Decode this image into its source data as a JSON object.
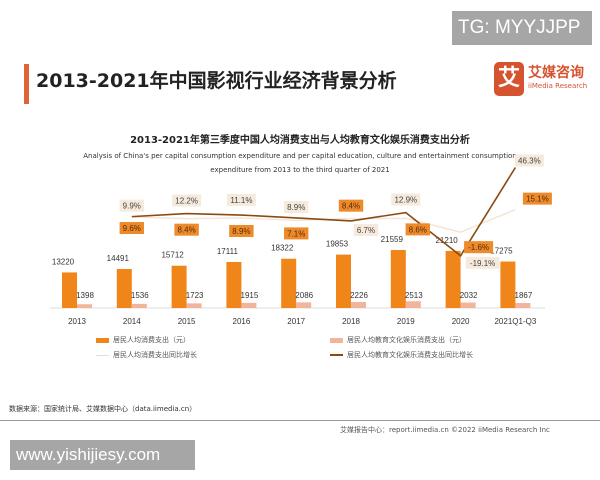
{
  "overlay_tag": "TG: MYYJJPP",
  "watermark": "www.yishijiesy.com",
  "header": {
    "title": "2013-2021年中国影视行业经济背景分析",
    "logo_mark": "艾",
    "logo_cn": "艾媒咨询",
    "logo_en": "iiMedia Research"
  },
  "source": "数据来源：国家统计局、艾媒数据中心（data.iimedia.cn）",
  "footer": "艾媒报告中心：report.iimedia.cn    ©2022  iiMedia Research Inc",
  "colors": {
    "bar_consumption": "#f08519",
    "bar_education": "#f2b49a",
    "line_consumption": "#f3e6d8",
    "line_education": "#8a4b12",
    "accent": "#e0643a"
  },
  "chart_data": {
    "type": "bar",
    "title": "2013-2021年第三季度中国人均消费支出与人均教育文化娱乐消费支出分析",
    "subtitle_line1": "Analysis of China's per capital consumption expenditure and per capital education, culture and entertainment consumption",
    "subtitle_line2": "expenditure from 2013 to the third quarter of 2021",
    "categories": [
      "2013",
      "2014",
      "2015",
      "2016",
      "2017",
      "2018",
      "2019",
      "2020",
      "2021Q1-Q3"
    ],
    "series": [
      {
        "name": "居民人均消费支出（元）",
        "kind": "bar",
        "values": [
          13220,
          14491,
          15712,
          17111,
          18322,
          19853,
          21559,
          21210,
          17275
        ]
      },
      {
        "name": "居民人均教育文化娱乐消费支出（元）",
        "kind": "bar",
        "values": [
          1398,
          1536,
          1723,
          1915,
          2086,
          2226,
          2513,
          2032,
          1867
        ]
      },
      {
        "name": "居民人均消费支出同比增长",
        "kind": "line",
        "unit": "%",
        "values": [
          null,
          9.6,
          8.4,
          8.9,
          7.1,
          8.4,
          8.6,
          -1.6,
          15.1
        ]
      },
      {
        "name": "居民人均教育文化娱乐消费支出同比增长",
        "kind": "line",
        "unit": "%",
        "values": [
          null,
          9.9,
          12.2,
          11.1,
          8.9,
          6.7,
          12.9,
          -19.1,
          46.3
        ]
      }
    ],
    "legend_position": "bottom",
    "grid": false
  }
}
